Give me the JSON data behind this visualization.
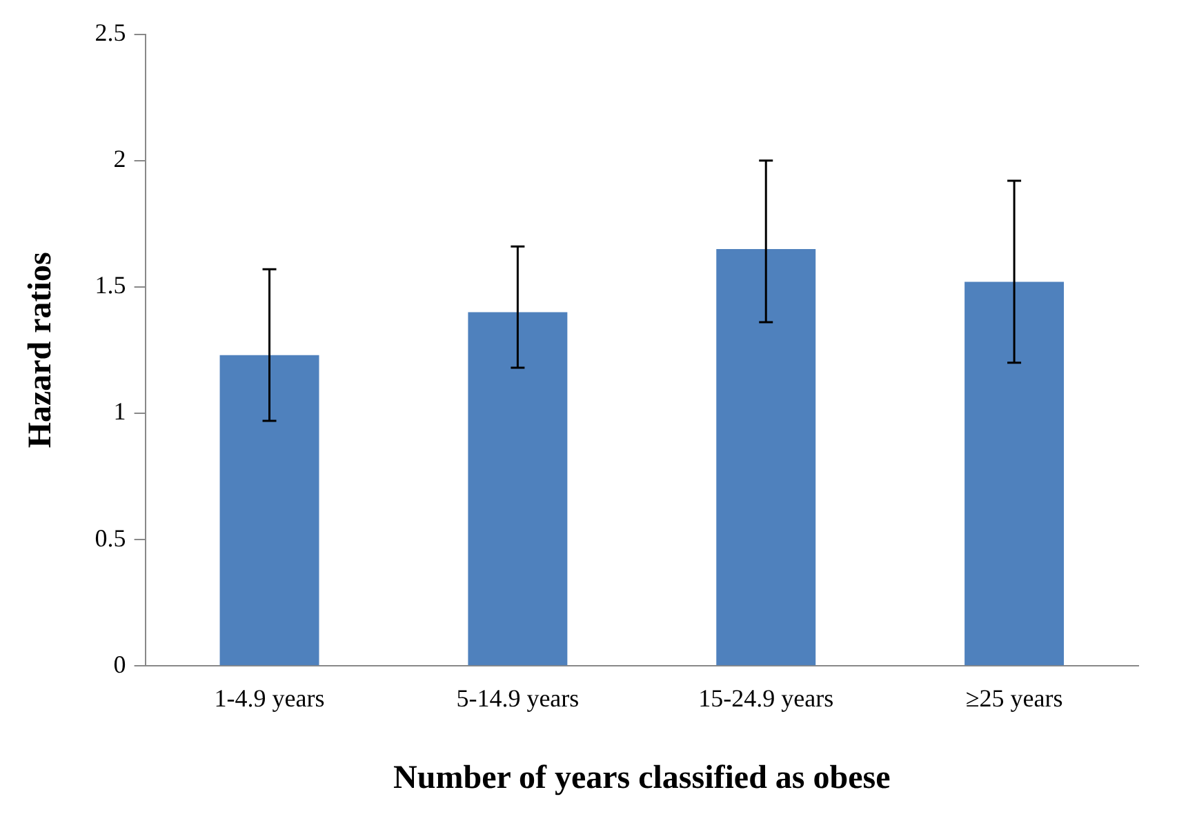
{
  "chart_data": {
    "type": "bar",
    "xlabel": "Number of years classified as obese",
    "ylabel": "Hazard ratios",
    "categories": [
      "1-4.9 years",
      "5-14.9 years",
      "15-24.9 years",
      "≥25 years"
    ],
    "values": [
      1.23,
      1.4,
      1.65,
      1.52
    ],
    "errors": [
      [
        0.97,
        1.57
      ],
      [
        1.18,
        1.66
      ],
      [
        1.36,
        2.0
      ],
      [
        1.2,
        1.92
      ]
    ],
    "color": "#4f81bd",
    "ylim": [
      0,
      2.5
    ],
    "yticks": [
      0,
      0.5,
      1,
      1.5,
      2,
      2.5
    ],
    "grid": false,
    "legend": false
  }
}
